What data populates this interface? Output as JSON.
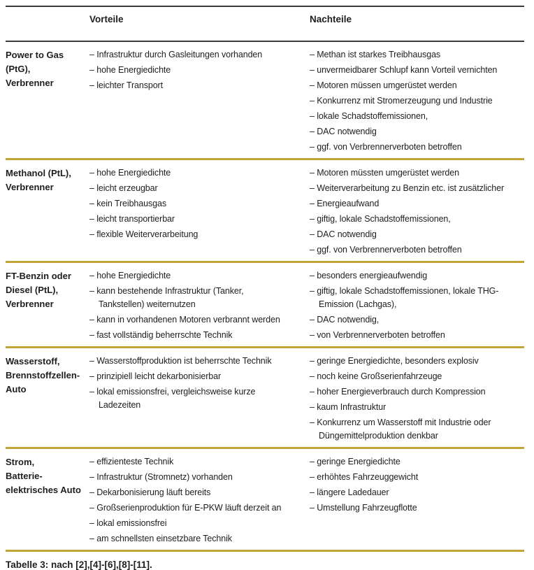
{
  "table": {
    "headers": {
      "vorteile": "Vorteile",
      "nachteile": "Nachteile"
    },
    "rows": [
      {
        "label": "Power to Gas\n(PtG),\nVerbrenner",
        "vorteile": [
          [
            "Infrastruktur durch Gasleitungen vorhanden"
          ],
          [
            "hohe Energiedichte"
          ],
          [
            "leichter Transport"
          ]
        ],
        "nachteile": [
          [
            "Methan ist starkes Treibhausgas"
          ],
          [
            "unvermeidbarer Schlupf kann Vorteil vernichten"
          ],
          [
            "Motoren müssen umgerüstet werden"
          ],
          [
            "Konkurrenz mit Stromerzeugung und Industrie"
          ],
          [
            "lokale Schadstoffemissionen,"
          ],
          [
            "DAC notwendig"
          ],
          [
            "ggf. von Verbrennerverboten betroffen"
          ]
        ]
      },
      {
        "label": "Methanol (PtL),\nVerbrenner",
        "vorteile": [
          [
            "hohe Energiedichte"
          ],
          [
            "leicht erzeugbar"
          ],
          [
            "kein Treibhausgas"
          ],
          [
            "leicht transportierbar"
          ],
          [
            "flexible Weiterverarbeitung"
          ]
        ],
        "nachteile": [
          [
            "Motoren müssten umgerüstet werden"
          ],
          [
            "Weiterverarbeitung zu Benzin etc. ist zusätzlicher"
          ],
          [
            "Energieaufwand"
          ],
          [
            "giftig, lokale Schadstoffemissionen,"
          ],
          [
            "DAC notwendig"
          ],
          [
            "ggf. von Verbrennerverboten betroffen"
          ]
        ]
      },
      {
        "label": "FT-Benzin oder\nDiesel (PtL),\nVerbrenner",
        "vorteile": [
          [
            "hohe Energiedichte"
          ],
          [
            "kann bestehende Infrastruktur (Tanker,",
            "Tankstellen) weiternutzen"
          ],
          [
            "kann in vorhandenen Motoren verbrannt werden"
          ],
          [
            "fast vollständig beherrschte Technik"
          ]
        ],
        "nachteile": [
          [
            "besonders energieaufwendig"
          ],
          [
            "giftig, lokale Schadstoffemissionen, lokale THG-",
            "Emission (Lachgas),"
          ],
          [
            "DAC notwendig,"
          ],
          [
            "von Verbrennerverboten betroffen"
          ]
        ]
      },
      {
        "label": "Wasserstoff,\nBrennstoffzellen-\nAuto",
        "vorteile": [
          [
            "Wasserstoffproduktion ist beherrschte Technik"
          ],
          [
            "prinzipiell leicht dekarbonisierbar"
          ],
          [
            "lokal emissionsfrei, vergleichsweise kurze",
            "Ladezeiten"
          ]
        ],
        "nachteile": [
          [
            "geringe Energiedichte, besonders explosiv"
          ],
          [
            "noch keine Großserienfahrzeuge"
          ],
          [
            "hoher Energieverbrauch durch Kompression"
          ],
          [
            "kaum Infrastruktur"
          ],
          [
            "Konkurrenz um Wasserstoff mit Industrie oder",
            "Düngemittelproduktion denkbar"
          ]
        ]
      },
      {
        "label": "Strom,\nBatterie-\nelektrisches Auto",
        "vorteile": [
          [
            "effizienteste Technik"
          ],
          [
            "Infrastruktur (Stromnetz) vorhanden"
          ],
          [
            "Dekarbonisierung läuft bereits"
          ],
          [
            "Großserienproduktion für E-PKW läuft derzeit an"
          ],
          [
            "lokal emissionsfrei"
          ],
          [
            "am schnellsten einsetzbare Technik"
          ]
        ],
        "nachteile": [
          [
            "geringe Energiedichte"
          ],
          [
            "erhöhtes Fahrzeuggewicht"
          ],
          [
            "längere Ladedauer"
          ],
          [
            "Umstellung Fahrzeugflotte"
          ]
        ]
      }
    ],
    "caption": "Tabelle 3: nach [2],[4]-[6],[8]-[11].",
    "bullet": "–"
  },
  "colors": {
    "separator_gold": "#c2a537",
    "border_dark": "#3c3c3c",
    "text": "#1e1e1e"
  }
}
